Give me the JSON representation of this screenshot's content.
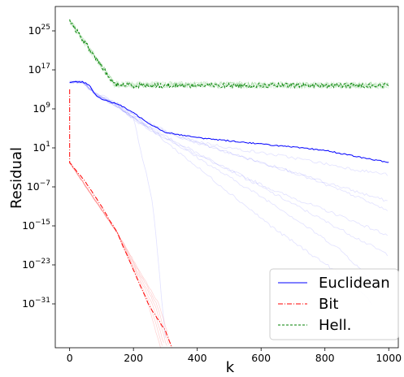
{
  "chart_data": {
    "type": "line",
    "title": "",
    "xlabel": "k",
    "ylabel": "Residual",
    "xlim": [
      -45,
      1030
    ],
    "ylim_log10": [
      -40,
      30
    ],
    "y_scale": "log",
    "grid": false,
    "legend_position": "bottom-right",
    "x_ticks": [
      0,
      200,
      400,
      600,
      800,
      1000
    ],
    "y_ticks": [
      {
        "exp": 25,
        "label": "10^25"
      },
      {
        "exp": 17,
        "label": "10^17"
      },
      {
        "exp": 9,
        "label": "10^9"
      },
      {
        "exp": 1,
        "label": "10^1"
      },
      {
        "exp": -7,
        "label": "10^-7"
      },
      {
        "exp": -15,
        "label": "10^-15"
      },
      {
        "exp": -23,
        "label": "10^-23"
      },
      {
        "exp": -31,
        "label": "10^-31"
      }
    ],
    "series": [
      {
        "name": "Euclidean",
        "color": "#0000ff",
        "style": "solid",
        "points": [
          [
            0,
            14.5
          ],
          [
            40,
            14.5
          ],
          [
            60,
            14
          ],
          [
            80,
            12
          ],
          [
            100,
            11
          ],
          [
            150,
            10
          ],
          [
            190,
            8.6
          ],
          [
            250,
            6
          ],
          [
            300,
            4.2
          ],
          [
            400,
            3.1
          ],
          [
            600,
            1.8
          ],
          [
            800,
            0.5
          ],
          [
            900,
            -0.8
          ],
          [
            1000,
            -2
          ]
        ]
      },
      {
        "name": "Bit",
        "color": "#ff0000",
        "style": "dashdot",
        "points": [
          [
            0,
            -2
          ],
          [
            50,
            -6
          ],
          [
            100,
            -11
          ],
          [
            150,
            -16.5
          ],
          [
            200,
            -24
          ],
          [
            250,
            -31.5
          ],
          [
            300,
            -36.5
          ],
          [
            320,
            -40
          ]
        ]
      },
      {
        "name": "Hell.",
        "color": "#008000",
        "style": "dashed",
        "points": [
          [
            0,
            27
          ],
          [
            140,
            14
          ],
          [
            200,
            13.8
          ],
          [
            400,
            13.8
          ],
          [
            600,
            13.8
          ],
          [
            800,
            13.8
          ],
          [
            1000,
            13.8
          ]
        ]
      }
    ]
  }
}
